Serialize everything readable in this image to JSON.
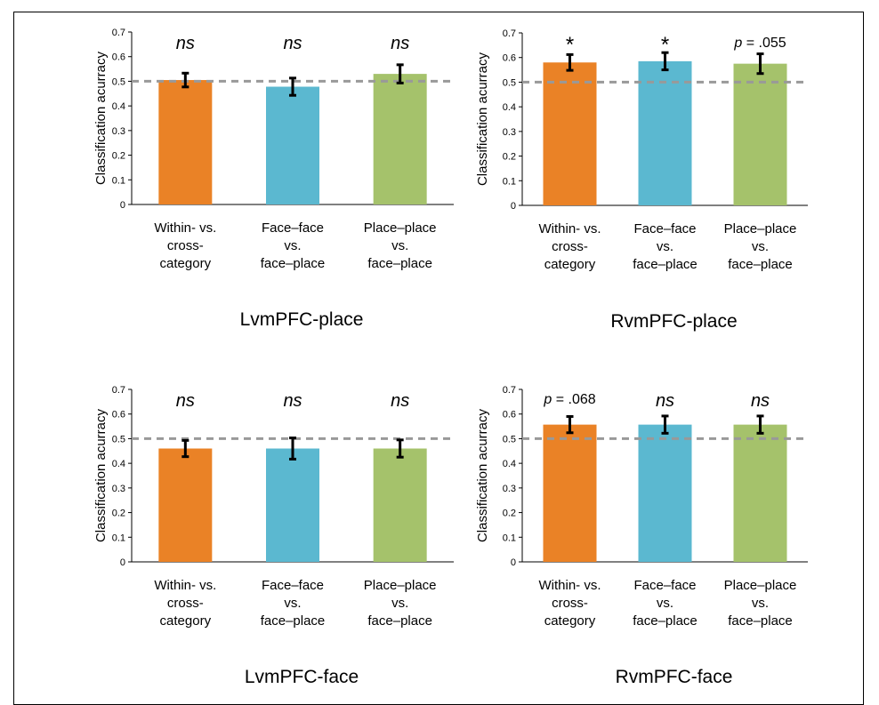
{
  "chart_data": [
    {
      "type": "bar",
      "title": "LvmPFC-place",
      "ylabel": "Classification acurracy",
      "ylim": [
        0,
        0.7
      ],
      "yticks": [
        "0",
        "0.1",
        "0.2",
        "0.3",
        "0.4",
        "0.5",
        "0.6",
        "0.7"
      ],
      "categories": [
        [
          "Within- vs.",
          "cross-",
          "category"
        ],
        [
          "Face–face",
          "vs.",
          "face–place"
        ],
        [
          "Place–place",
          "vs.",
          "face–place"
        ]
      ],
      "values": [
        0.505,
        0.478,
        0.53
      ],
      "errors": [
        0.028,
        0.035,
        0.037
      ],
      "annotations": [
        "ns",
        "ns",
        "ns"
      ],
      "chance_line": 0.5,
      "colors": [
        "#ea8226",
        "#5bb8d0",
        "#a5c26b"
      ]
    },
    {
      "type": "bar",
      "title": "RvmPFC-place",
      "ylabel": "Classification acurracy",
      "ylim": [
        0,
        0.7
      ],
      "yticks": [
        "0",
        "0.1",
        "0.2",
        "0.3",
        "0.4",
        "0.5",
        "0.6",
        "0.7"
      ],
      "categories": [
        [
          "Within- vs.",
          "cross-",
          "category"
        ],
        [
          "Face–face",
          "vs.",
          "face–place"
        ],
        [
          "Place–place",
          "vs.",
          "face–place"
        ]
      ],
      "values": [
        0.58,
        0.585,
        0.575
      ],
      "errors": [
        0.032,
        0.035,
        0.04
      ],
      "annotations": [
        "*",
        "*",
        "p = .055"
      ],
      "chance_line": 0.5,
      "colors": [
        "#ea8226",
        "#5bb8d0",
        "#a5c26b"
      ]
    },
    {
      "type": "bar",
      "title": "LvmPFC-face",
      "ylabel": "Classification acurracy",
      "ylim": [
        0,
        0.7
      ],
      "yticks": [
        "0",
        "0.1",
        "0.2",
        "0.3",
        "0.4",
        "0.5",
        "0.6",
        "0.7"
      ],
      "categories": [
        [
          "Within- vs.",
          "cross-",
          "category"
        ],
        [
          "Face–face",
          "vs.",
          "face–place"
        ],
        [
          "Place–place",
          "vs.",
          "face–place"
        ]
      ],
      "values": [
        0.46,
        0.46,
        0.46
      ],
      "errors": [
        0.033,
        0.043,
        0.035
      ],
      "annotations": [
        "ns",
        "ns",
        "ns"
      ],
      "chance_line": 0.5,
      "colors": [
        "#ea8226",
        "#5bb8d0",
        "#a5c26b"
      ]
    },
    {
      "type": "bar",
      "title": "RvmPFC-face",
      "ylabel": "Classification acurracy",
      "ylim": [
        0,
        0.7
      ],
      "yticks": [
        "0",
        "0.1",
        "0.2",
        "0.3",
        "0.4",
        "0.5",
        "0.6",
        "0.7"
      ],
      "categories": [
        [
          "Within- vs.",
          "cross-",
          "category"
        ],
        [
          "Face–face",
          "vs.",
          "face–place"
        ],
        [
          "Place–place",
          "vs.",
          "face–place"
        ]
      ],
      "values": [
        0.557,
        0.557,
        0.557
      ],
      "errors": [
        0.033,
        0.035,
        0.035
      ],
      "annotations": [
        "p = .068",
        "ns",
        "ns"
      ],
      "chance_line": 0.5,
      "colors": [
        "#ea8226",
        "#5bb8d0",
        "#a5c26b"
      ]
    }
  ]
}
